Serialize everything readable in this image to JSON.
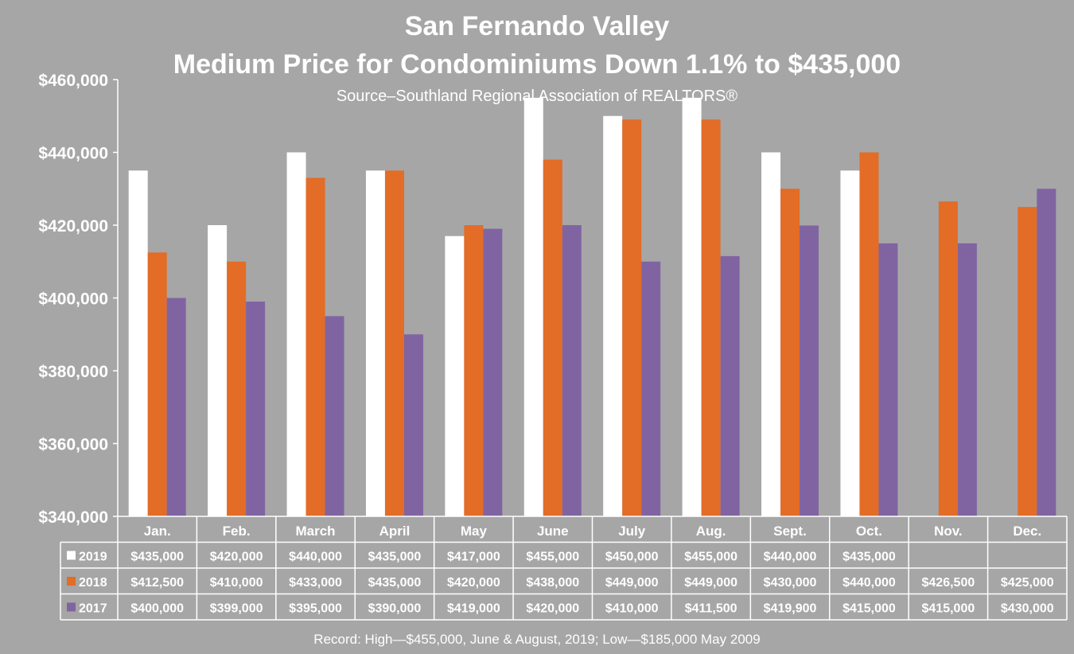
{
  "chart_data": {
    "type": "bar",
    "title": "San Fernando Valley",
    "subtitle": "Medium Price for Condominiums Down 1.1% to $435,000",
    "source": "Source–Southland Regional Association of REALTORS®",
    "footer": "Record: High—$455,000, June & August, 2019; Low—$185,000 May 2009",
    "categories": [
      "Jan.",
      "Feb.",
      "March",
      "April",
      "May",
      "June",
      "July",
      "Aug.",
      "Sept.",
      "Oct.",
      "Nov.",
      "Dec."
    ],
    "ylim": [
      340000,
      460000
    ],
    "yticks": [
      340000,
      360000,
      380000,
      400000,
      420000,
      440000,
      460000
    ],
    "ytick_labels": [
      "$340,000",
      "$360,000",
      "$380,000",
      "$400,000",
      "$420,000",
      "$440,000",
      "$460,000"
    ],
    "legend": "data-table",
    "grid": false,
    "series": [
      {
        "name": "2019",
        "color": "#ffffff",
        "values": [
          435000,
          420000,
          440000,
          435000,
          417000,
          455000,
          450000,
          455000,
          440000,
          435000,
          null,
          null
        ],
        "labels": [
          "$435,000",
          "$420,000",
          "$440,000",
          "$435,000",
          "$417,000",
          "$455,000",
          "$450,000",
          "$455,000",
          "$440,000",
          "$435,000",
          "",
          ""
        ]
      },
      {
        "name": "2018",
        "color": "#e36c26",
        "values": [
          412500,
          410000,
          433000,
          435000,
          420000,
          438000,
          449000,
          449000,
          430000,
          440000,
          426500,
          425000
        ],
        "labels": [
          "$412,500",
          "$410,000",
          "$433,000",
          "$435,000",
          "$420,000",
          "$438,000",
          "$449,000",
          "$449,000",
          "$430,000",
          "$440,000",
          "$426,500",
          "$425,000"
        ]
      },
      {
        "name": "2017",
        "color": "#8064a2",
        "values": [
          400000,
          399000,
          395000,
          390000,
          419000,
          420000,
          410000,
          411500,
          419900,
          415000,
          415000,
          430000
        ],
        "labels": [
          "$400,000",
          "$399,000",
          "$395,000",
          "$390,000",
          "$419,000",
          "$420,000",
          "$410,000",
          "$411,500",
          "$419,900",
          "$415,000",
          "$415,000",
          "$430,000"
        ]
      }
    ]
  }
}
